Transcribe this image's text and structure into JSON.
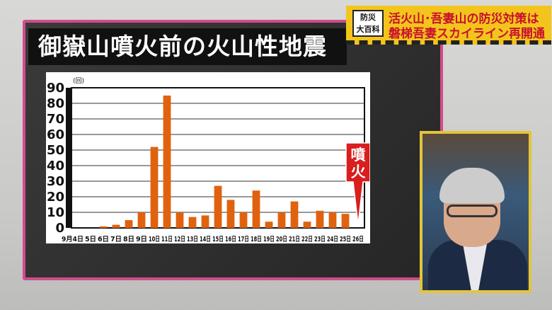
{
  "board": {
    "title": "御嶽山噴火前の火山性地震"
  },
  "banner": {
    "logo_line1": "防災",
    "logo_line2": "大百科",
    "line1": "活火山･吾妻山の防災対策は",
    "line2": "磐梯吾妻スカイライン再開通"
  },
  "colors": {
    "bar": "#e0620e",
    "board_border": "#d04c8c",
    "banner": "#f3c51c",
    "eruption_marker": "#d81e1e"
  },
  "chart_data": {
    "type": "bar",
    "ylabel": "(回)",
    "ylim": [
      0,
      90
    ],
    "yticks": [
      0,
      10,
      20,
      30,
      40,
      50,
      60,
      70,
      80,
      90
    ],
    "grid": true,
    "categories": [
      "9月4日",
      "5日",
      "6日",
      "7日",
      "8日",
      "9日",
      "10日",
      "11日",
      "12日",
      "13日",
      "14日",
      "15日",
      "16日",
      "17日",
      "18日",
      "19日",
      "20日",
      "21日",
      "22日",
      "23日",
      "24日",
      "25日",
      "26日"
    ],
    "values": [
      0,
      0,
      1,
      2,
      5,
      10,
      52,
      85,
      10,
      7,
      8,
      27,
      18,
      10,
      24,
      4,
      10,
      17,
      4,
      11,
      10,
      9,
      0
    ],
    "annotation": {
      "category": "26日",
      "text": "噴火"
    }
  }
}
